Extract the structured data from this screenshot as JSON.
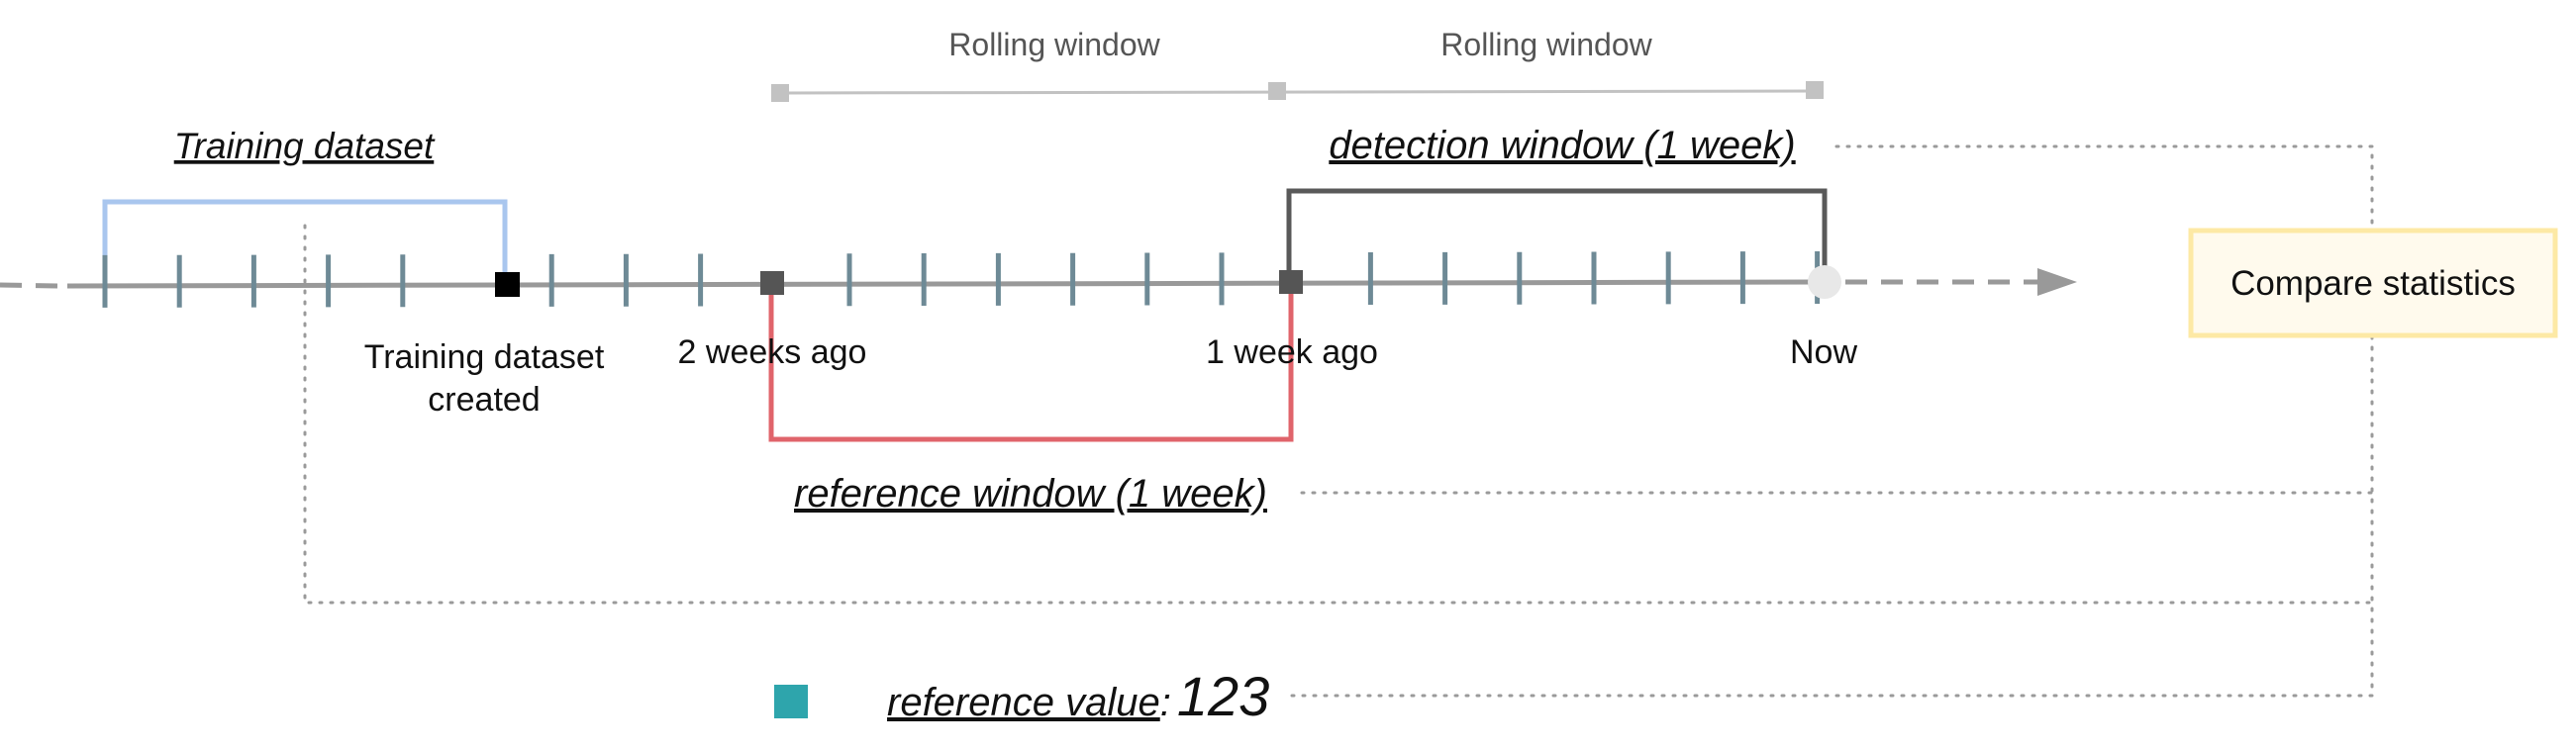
{
  "rolling": {
    "label_1": "Rolling window",
    "label_2": "Rolling window"
  },
  "training": {
    "label": "Training dataset",
    "created_line_1": "Training dataset",
    "created_line_2": "created"
  },
  "timeline": {
    "two_weeks_ago": "2 weeks ago",
    "one_week_ago": "1 week ago",
    "now": "Now"
  },
  "detection_window": {
    "label": "detection window (1 week)"
  },
  "reference_window": {
    "label": "reference window (1 week)"
  },
  "reference_value": {
    "label": "reference value",
    "separator": ":",
    "value": "123"
  },
  "compare": {
    "label": "Compare statistics"
  },
  "colors": {
    "training_bracket": "#a9c6ee",
    "detection_bracket": "#595959",
    "reference_bracket": "#e0646b",
    "timeline": "#999999",
    "tick": "#6e8a96",
    "marker_dark": "#555555",
    "marker_black": "#000000",
    "now_marker": "#e8e8e8",
    "rolling": "#c2c2c2",
    "reference_value_swatch": "#2ea5ac",
    "compare_fill": "#fffaed",
    "compare_border": "#fde9a5"
  }
}
